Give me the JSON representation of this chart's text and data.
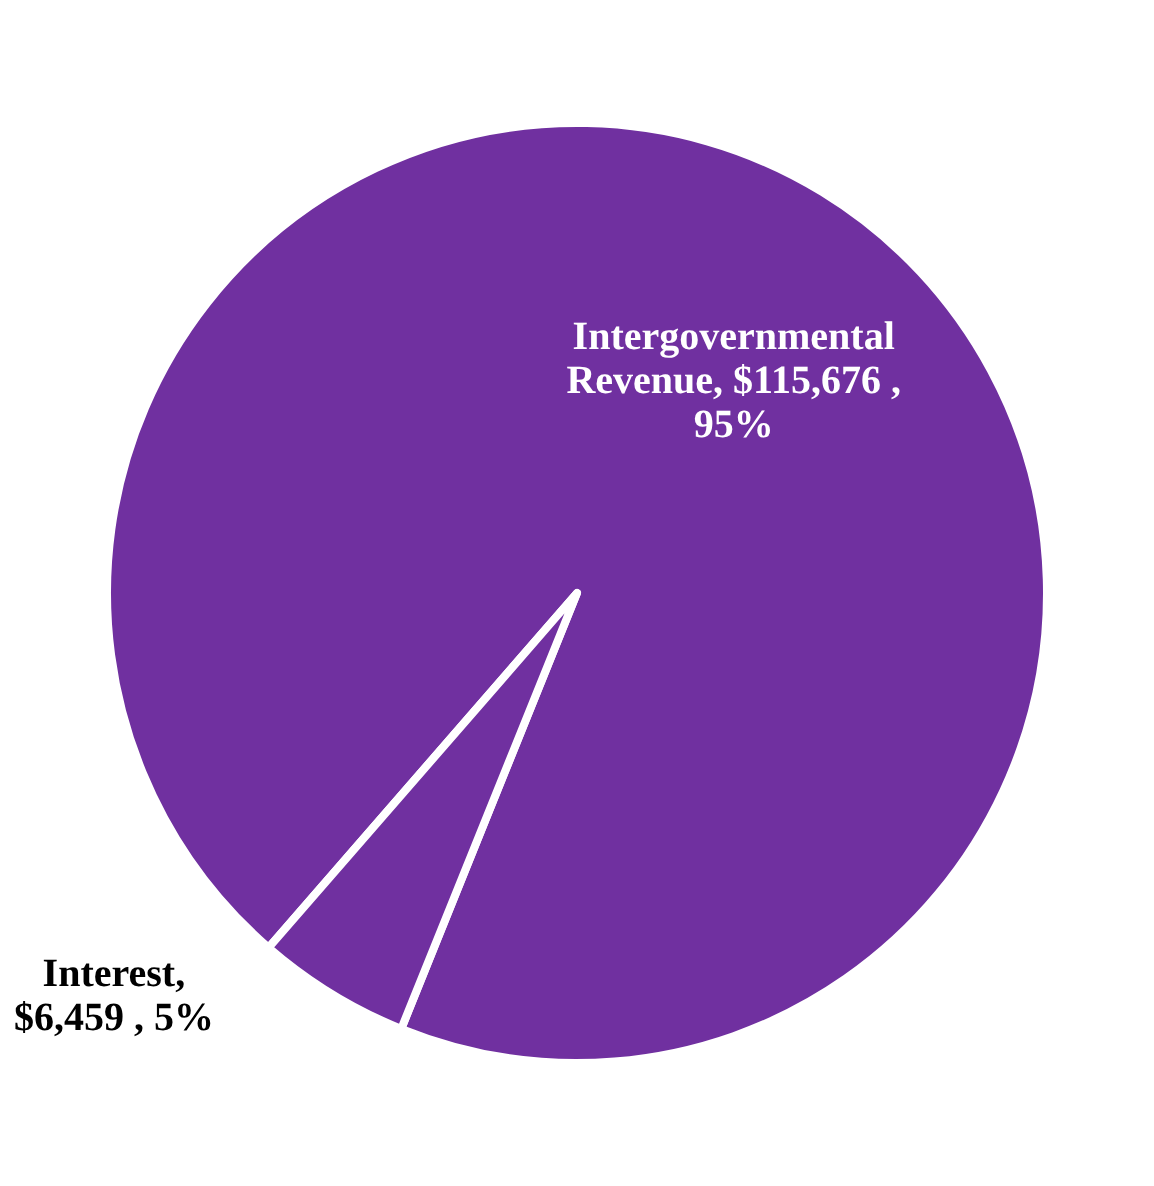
{
  "chart_data": {
    "type": "pie",
    "categories": [
      "Intergovernmental Revenue",
      "Interest"
    ],
    "values": [
      115676,
      6459
    ],
    "colors": [
      "#7030a0",
      "#7030a0"
    ],
    "value_labels": [
      ", $115,676 , 95%",
      ", $6,459 , 5%"
    ],
    "legend": false
  }
}
